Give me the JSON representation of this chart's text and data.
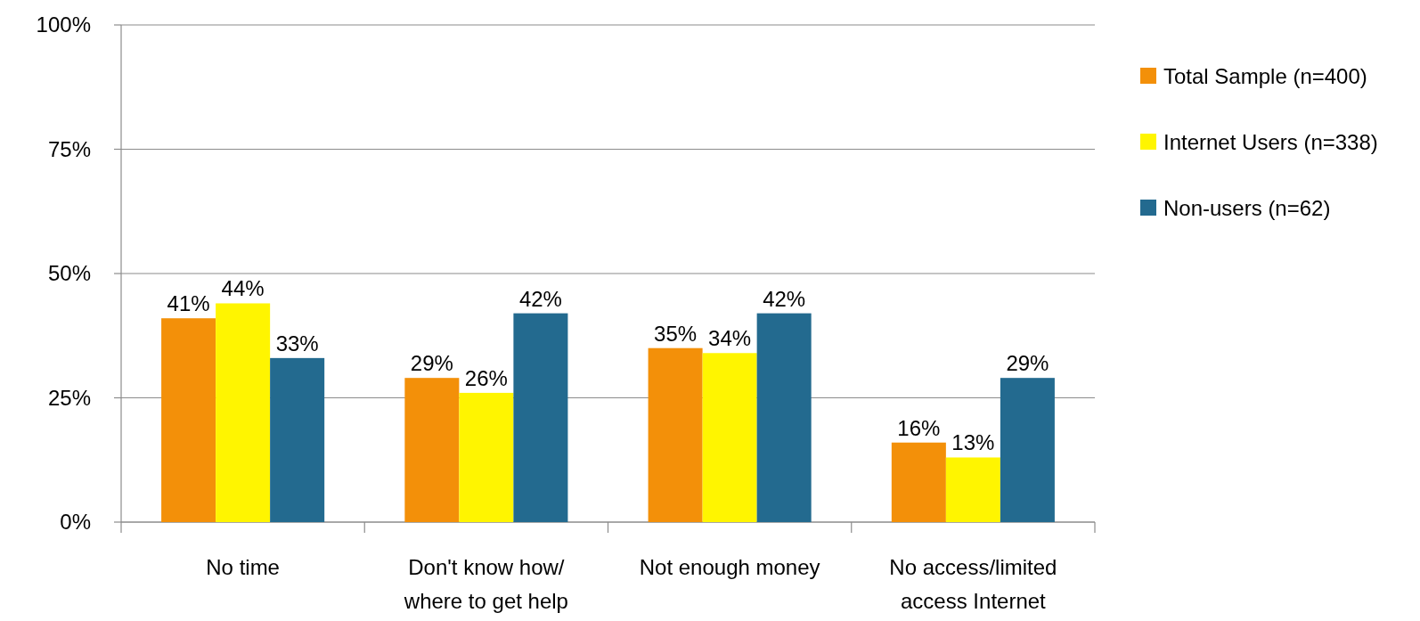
{
  "chart_data": {
    "type": "bar",
    "categories": [
      "No time",
      "Don't know how/ where to get help",
      "Not enough money",
      "No access/limited access Internet"
    ],
    "series": [
      {
        "name": "Total Sample (n=400)",
        "color": "#f39009",
        "values": [
          41,
          29,
          35,
          16
        ],
        "value_labels": [
          "41%",
          "29%",
          "35%",
          "16%"
        ]
      },
      {
        "name": "Internet Users (n=338)",
        "color": "#fff500",
        "values": [
          44,
          26,
          34,
          13
        ],
        "value_labels": [
          "44%",
          "26%",
          "34%",
          "13%"
        ]
      },
      {
        "name": "Non-users (n=62)",
        "color": "#236a8f",
        "values": [
          33,
          42,
          42,
          29
        ],
        "value_labels": [
          "33%",
          "42%",
          "42%",
          "29%"
        ]
      }
    ],
    "ylim": [
      0,
      100
    ],
    "yticks": [
      {
        "value": 0,
        "label": "0%"
      },
      {
        "value": 25,
        "label": "25%"
      },
      {
        "value": 50,
        "label": "50%"
      },
      {
        "value": 75,
        "label": "75%"
      },
      {
        "value": 100,
        "label": "100%"
      }
    ],
    "grid": "y",
    "legend": "right"
  }
}
